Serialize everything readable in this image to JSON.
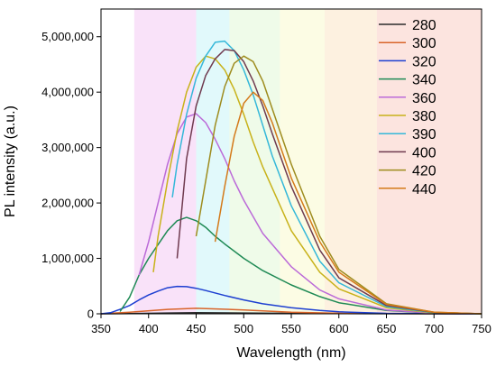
{
  "chart_data": {
    "type": "line",
    "xlabel": "Wavelength (nm)",
    "ylabel": "PL intensity (a.u.)",
    "xlim": [
      350,
      750
    ],
    "ylim": [
      0,
      5500000
    ],
    "x_ticks": [
      350,
      400,
      450,
      500,
      550,
      600,
      650,
      700,
      750
    ],
    "x_tick_labels": [
      "350",
      "400",
      "450",
      "500",
      "550",
      "600",
      "650",
      "700",
      "750"
    ],
    "y_ticks": [
      0,
      1000000,
      2000000,
      3000000,
      4000000,
      5000000
    ],
    "y_tick_labels": [
      "0",
      "1,000,000",
      "2,000,000",
      "3,000,000",
      "4,000,000",
      "5,000,000"
    ],
    "grid": false,
    "legend_position": "top-right",
    "background_bands": [
      {
        "x_range": [
          385,
          450
        ],
        "color": "#f7d6f7"
      },
      {
        "x_range": [
          450,
          485
        ],
        "color": "#d4f6f9"
      },
      {
        "x_range": [
          485,
          538
        ],
        "color": "#e8f9df"
      },
      {
        "x_range": [
          538,
          585
        ],
        "color": "#fbfbd9"
      },
      {
        "x_range": [
          585,
          640
        ],
        "color": "#fcebd3"
      },
      {
        "x_range": [
          640,
          750
        ],
        "color": "#fbd8d2"
      }
    ],
    "series": [
      {
        "name": "280",
        "color": "#2b2b2b",
        "x": [
          350,
          380,
          420,
          450,
          500,
          550,
          600,
          650,
          700,
          750
        ],
        "y": [
          0,
          5000,
          15000,
          20000,
          15000,
          8000,
          3000,
          1000,
          0,
          0
        ]
      },
      {
        "name": "300",
        "color": "#d9642a",
        "x": [
          350,
          380,
          420,
          450,
          500,
          550,
          600,
          650,
          700,
          750
        ],
        "y": [
          0,
          30000,
          80000,
          100000,
          70000,
          30000,
          10000,
          3000,
          1000,
          0
        ]
      },
      {
        "name": "320",
        "color": "#1d3fd1",
        "x": [
          350,
          360,
          370,
          380,
          390,
          400,
          410,
          420,
          430,
          440,
          450,
          460,
          480,
          500,
          520,
          550,
          580,
          600,
          650,
          700,
          750
        ],
        "y": [
          0,
          20000,
          80000,
          150000,
          250000,
          340000,
          410000,
          470000,
          495000,
          490000,
          460000,
          420000,
          330000,
          250000,
          180000,
          110000,
          60000,
          35000,
          8000,
          1000,
          0
        ]
      },
      {
        "name": "340",
        "color": "#1f8a55",
        "x": [
          370,
          380,
          390,
          400,
          410,
          420,
          430,
          440,
          450,
          460,
          470,
          480,
          500,
          520,
          550,
          580,
          600,
          650,
          700,
          750
        ],
        "y": [
          40000,
          300000,
          700000,
          1000000,
          1250000,
          1500000,
          1680000,
          1740000,
          1680000,
          1560000,
          1400000,
          1260000,
          1000000,
          780000,
          520000,
          310000,
          200000,
          60000,
          10000,
          0
        ]
      },
      {
        "name": "360",
        "color": "#bb6ad8",
        "x": [
          390,
          400,
          410,
          420,
          430,
          440,
          450,
          460,
          470,
          480,
          490,
          500,
          520,
          550,
          580,
          600,
          650,
          700,
          750
        ],
        "y": [
          700000,
          1300000,
          2000000,
          2700000,
          3250000,
          3550000,
          3610000,
          3450000,
          3150000,
          2800000,
          2400000,
          2050000,
          1450000,
          850000,
          430000,
          270000,
          70000,
          10000,
          0
        ]
      },
      {
        "name": "380",
        "color": "#c8b21a",
        "x": [
          405,
          410,
          420,
          430,
          440,
          450,
          460,
          470,
          480,
          490,
          500,
          510,
          520,
          550,
          580,
          600,
          650,
          700,
          750
        ],
        "y": [
          750000,
          1400000,
          2400000,
          3300000,
          4000000,
          4450000,
          4650000,
          4600000,
          4400000,
          4050000,
          3600000,
          3100000,
          2650000,
          1500000,
          750000,
          450000,
          110000,
          15000,
          0
        ]
      },
      {
        "name": "390",
        "color": "#35b8d9",
        "x": [
          425,
          430,
          440,
          450,
          460,
          470,
          480,
          490,
          500,
          510,
          520,
          530,
          550,
          580,
          600,
          650,
          700,
          750
        ],
        "y": [
          2100000,
          2700000,
          3600000,
          4250000,
          4650000,
          4900000,
          4920000,
          4750000,
          4400000,
          3950000,
          3400000,
          2850000,
          1950000,
          950000,
          560000,
          130000,
          20000,
          0
        ]
      },
      {
        "name": "400",
        "color": "#6f3a4f",
        "x": [
          430,
          435,
          440,
          450,
          460,
          470,
          480,
          490,
          500,
          510,
          520,
          530,
          550,
          580,
          600,
          650,
          700,
          750
        ],
        "y": [
          1000000,
          1900000,
          2800000,
          3750000,
          4300000,
          4600000,
          4770000,
          4750000,
          4550000,
          4200000,
          3750000,
          3250000,
          2300000,
          1150000,
          650000,
          150000,
          25000,
          0
        ]
      },
      {
        "name": "420",
        "color": "#9e8c1e",
        "x": [
          450,
          460,
          470,
          480,
          490,
          500,
          510,
          520,
          530,
          540,
          550,
          580,
          600,
          650,
          700,
          750
        ],
        "y": [
          1400000,
          2400000,
          3400000,
          4100000,
          4520000,
          4650000,
          4550000,
          4200000,
          3700000,
          3200000,
          2700000,
          1400000,
          800000,
          180000,
          30000,
          0
        ]
      },
      {
        "name": "440",
        "color": "#d47a1a",
        "x": [
          470,
          480,
          490,
          500,
          510,
          520,
          530,
          540,
          550,
          580,
          600,
          650,
          700,
          750
        ],
        "y": [
          1300000,
          2300000,
          3200000,
          3800000,
          4000000,
          3850000,
          3450000,
          2950000,
          2450000,
          1300000,
          750000,
          170000,
          30000,
          0
        ]
      }
    ]
  }
}
